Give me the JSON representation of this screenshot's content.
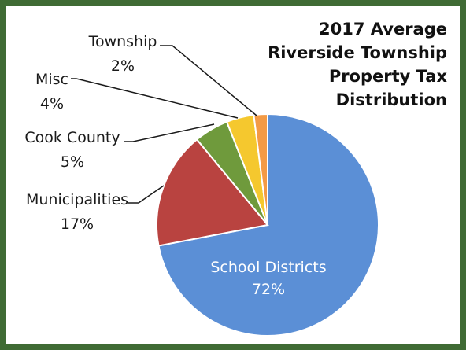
{
  "chart_data": {
    "type": "pie",
    "title_lines": [
      "2017 Average",
      "Riverside Township",
      "Property Tax",
      "Distribution"
    ],
    "slices": [
      {
        "label": "School Districts",
        "value": 72,
        "display": "72%",
        "color": "#5b8fd6"
      },
      {
        "label": "Municipalities",
        "value": 17,
        "display": "17%",
        "color": "#b94340"
      },
      {
        "label": "Cook County",
        "value": 5,
        "display": "5%",
        "color": "#6f9a3c"
      },
      {
        "label": "Misc",
        "value": 4,
        "display": "4%",
        "color": "#f5c82e"
      },
      {
        "label": "Township",
        "value": 2,
        "display": "2%",
        "color": "#f39a45"
      }
    ]
  }
}
